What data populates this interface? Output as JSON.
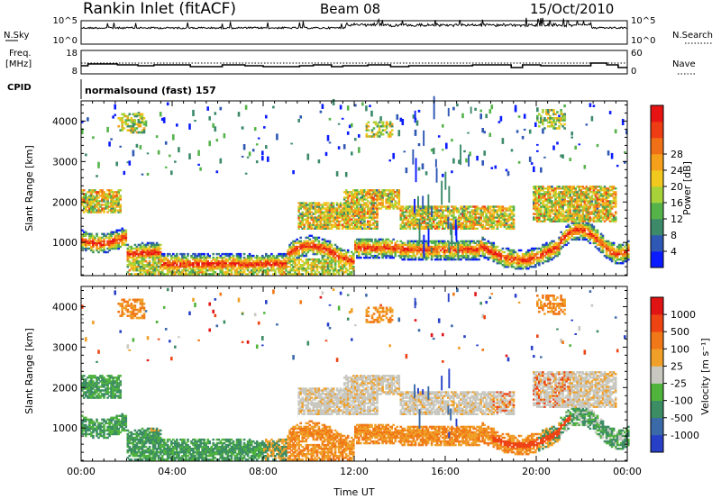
{
  "header": {
    "station": "Rankin Inlet (fitACF)",
    "beam": "Beam 08",
    "date": "15/Oct/2010"
  },
  "panels": {
    "nsky_label": "N.Sky",
    "nsky_ticks": [
      "10^5",
      "10^0"
    ],
    "nsearch_label": "N.Search",
    "nsearch_ticks": [
      "10^5",
      "10^0"
    ],
    "freq_label": "Freq.",
    "freq_unit": "[MHz]",
    "freq_ticks": [
      "18",
      "8"
    ],
    "nave_label": "Nave",
    "nave_ticks": [
      "60",
      "0"
    ],
    "cpid_label": "CPID",
    "cpid_text": "normalsound (fast) 157"
  },
  "chart_data": [
    {
      "type": "heatmap",
      "name": "power",
      "ylabel": "Slant Range [km]",
      "xlabel": "",
      "x_ticks": [
        "00:00",
        "04:00",
        "08:00",
        "12:00",
        "16:00",
        "20:00",
        "00:00"
      ],
      "x_range_hours": [
        0,
        24
      ],
      "y_ticks": [
        1000,
        2000,
        3000,
        4000
      ],
      "ylim": [
        180,
        4500
      ],
      "colorbar": {
        "label": "Power [dB]",
        "ticks": [
          "4",
          "8",
          "12",
          "16",
          "20",
          "24",
          "28"
        ],
        "colors": [
          "#0a1cff",
          "#2f57b4",
          "#3c8a6a",
          "#55b34a",
          "#a8d23a",
          "#f0c81e",
          "#f5a01a",
          "#f07018",
          "#ee3c14",
          "#e81414"
        ]
      }
    },
    {
      "type": "heatmap",
      "name": "velocity",
      "ylabel": "Slant Range [km]",
      "xlabel": "Time UT",
      "x_ticks": [
        "00:00",
        "04:00",
        "08:00",
        "12:00",
        "16:00",
        "20:00",
        "00:00"
      ],
      "x_range_hours": [
        0,
        24
      ],
      "y_ticks": [
        1000,
        2000,
        3000,
        4000
      ],
      "ylim": [
        180,
        4500
      ],
      "colorbar": {
        "label": "Velocity [m s⁻¹]",
        "ticks": [
          "1000",
          "500",
          "100",
          "25",
          "-25",
          "-100",
          "-500",
          "-1000"
        ],
        "colors": [
          "#2840c8",
          "#3a6aa8",
          "#3c8c64",
          "#50b43c",
          "#c8c8c0",
          "#f0a028",
          "#f07818",
          "#ee4414",
          "#e01414"
        ]
      }
    }
  ]
}
